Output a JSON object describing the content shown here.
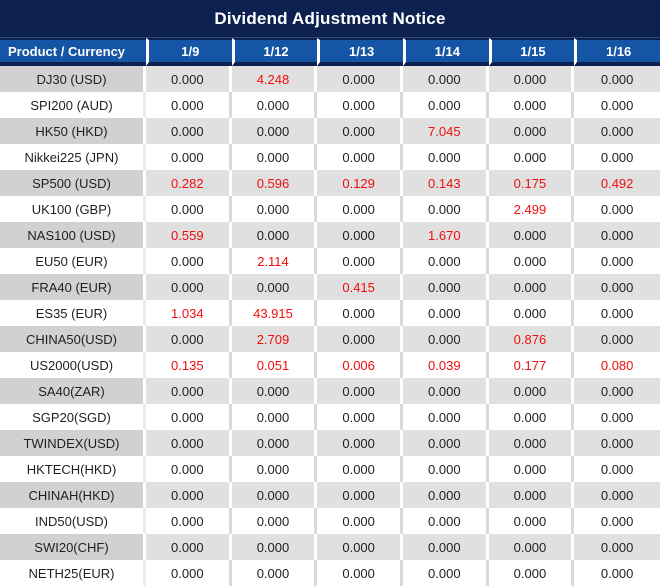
{
  "title": "Dividend Adjustment Notice",
  "colors": {
    "title_bg": "#0d2150",
    "header_cell_bg": "#1455a5",
    "header_text": "#ffffff",
    "row_gray_product_bg": "#d1d1d3",
    "row_gray_value_bg": "#e0e0e0",
    "row_white_bg": "#ffffff",
    "value_text": "#1f1f1f",
    "nonzero_value_red": "#f20d0d"
  },
  "table": {
    "product_header": "Product / Currency",
    "date_columns": [
      "1/9",
      "1/12",
      "1/13",
      "1/14",
      "1/15",
      "1/16"
    ],
    "rows": [
      {
        "product": "DJ30 (USD)",
        "values": [
          "0.000",
          "4.248",
          "0.000",
          "0.000",
          "0.000",
          "0.000"
        ]
      },
      {
        "product": "SPI200 (AUD)",
        "values": [
          "0.000",
          "0.000",
          "0.000",
          "0.000",
          "0.000",
          "0.000"
        ]
      },
      {
        "product": "HK50 (HKD)",
        "values": [
          "0.000",
          "0.000",
          "0.000",
          "7.045",
          "0.000",
          "0.000"
        ]
      },
      {
        "product": "Nikkei225 (JPN)",
        "values": [
          "0.000",
          "0.000",
          "0.000",
          "0.000",
          "0.000",
          "0.000"
        ]
      },
      {
        "product": "SP500 (USD)",
        "values": [
          "0.282",
          "0.596",
          "0.129",
          "0.143",
          "0.175",
          "0.492"
        ]
      },
      {
        "product": "UK100 (GBP)",
        "values": [
          "0.000",
          "0.000",
          "0.000",
          "0.000",
          "2.499",
          "0.000"
        ]
      },
      {
        "product": "NAS100 (USD)",
        "values": [
          "0.559",
          "0.000",
          "0.000",
          "1.670",
          "0.000",
          "0.000"
        ]
      },
      {
        "product": "EU50 (EUR)",
        "values": [
          "0.000",
          "2.114",
          "0.000",
          "0.000",
          "0.000",
          "0.000"
        ]
      },
      {
        "product": "FRA40 (EUR)",
        "values": [
          "0.000",
          "0.000",
          "0.415",
          "0.000",
          "0.000",
          "0.000"
        ]
      },
      {
        "product": "ES35 (EUR)",
        "values": [
          "1.034",
          "43.915",
          "0.000",
          "0.000",
          "0.000",
          "0.000"
        ]
      },
      {
        "product": "CHINA50(USD)",
        "values": [
          "0.000",
          "2.709",
          "0.000",
          "0.000",
          "0.876",
          "0.000"
        ]
      },
      {
        "product": "US2000(USD)",
        "values": [
          "0.135",
          "0.051",
          "0.006",
          "0.039",
          "0.177",
          "0.080"
        ]
      },
      {
        "product": "SA40(ZAR)",
        "values": [
          "0.000",
          "0.000",
          "0.000",
          "0.000",
          "0.000",
          "0.000"
        ]
      },
      {
        "product": "SGP20(SGD)",
        "values": [
          "0.000",
          "0.000",
          "0.000",
          "0.000",
          "0.000",
          "0.000"
        ]
      },
      {
        "product": "TWINDEX(USD)",
        "values": [
          "0.000",
          "0.000",
          "0.000",
          "0.000",
          "0.000",
          "0.000"
        ]
      },
      {
        "product": "HKTECH(HKD)",
        "values": [
          "0.000",
          "0.000",
          "0.000",
          "0.000",
          "0.000",
          "0.000"
        ]
      },
      {
        "product": "CHINAH(HKD)",
        "values": [
          "0.000",
          "0.000",
          "0.000",
          "0.000",
          "0.000",
          "0.000"
        ]
      },
      {
        "product": "IND50(USD)",
        "values": [
          "0.000",
          "0.000",
          "0.000",
          "0.000",
          "0.000",
          "0.000"
        ]
      },
      {
        "product": "SWI20(CHF)",
        "values": [
          "0.000",
          "0.000",
          "0.000",
          "0.000",
          "0.000",
          "0.000"
        ]
      },
      {
        "product": "NETH25(EUR)",
        "values": [
          "0.000",
          "0.000",
          "0.000",
          "0.000",
          "0.000",
          "0.000"
        ]
      }
    ]
  }
}
